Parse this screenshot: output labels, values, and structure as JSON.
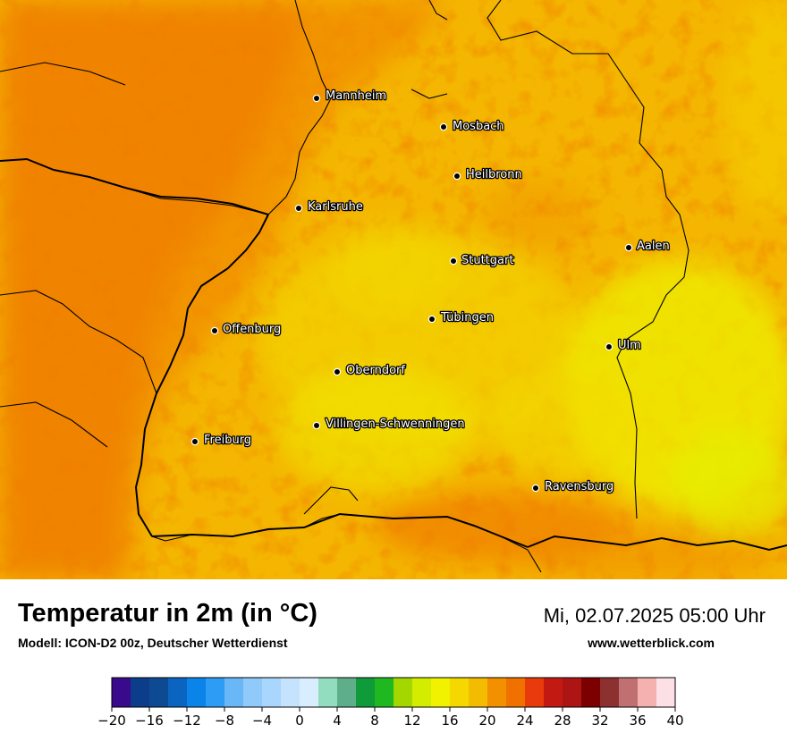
{
  "map": {
    "title": "Temperatur in 2m (in °C)",
    "model": "Modell: ICON-D2 00z, Deutscher Wetterdienst",
    "datetime": "Mi, 02.07.2025 05:00 Uhr",
    "website": "www.wetterblick.com",
    "cities": [
      {
        "id": "mannheim",
        "name": "Mannheim"
      },
      {
        "id": "mosbach",
        "name": "Mosbach"
      },
      {
        "id": "heilbronn",
        "name": "Heilbronn"
      },
      {
        "id": "karlsruhe",
        "name": "Karlsruhe"
      },
      {
        "id": "aalen",
        "name": "Aalen"
      },
      {
        "id": "stuttgart",
        "name": "Stuttgart"
      },
      {
        "id": "tuebingen",
        "name": "Tübingen"
      },
      {
        "id": "offenburg",
        "name": "Offenburg"
      },
      {
        "id": "ulm",
        "name": "Ulm"
      },
      {
        "id": "oberndorf",
        "name": "Oberndorf"
      },
      {
        "id": "villingen",
        "name": "Villingen-Schwenningen"
      },
      {
        "id": "freiburg",
        "name": "Freiburg"
      },
      {
        "id": "ravensburg",
        "name": "Ravensburg"
      }
    ]
  },
  "colorbar": {
    "min": -20,
    "max": 40,
    "step": 2,
    "colors": [
      "#3a0a8c",
      "#0c3d8a",
      "#0d4a92",
      "#0a64c0",
      "#0a84e8",
      "#2d9cf5",
      "#6ab7f8",
      "#8fcafb",
      "#a8d6fc",
      "#c6e3fd",
      "#d8edfe",
      "#92dcc0",
      "#5fae8a",
      "#0f9b3a",
      "#20b820",
      "#a4d600",
      "#d4ec00",
      "#f0f200",
      "#f4d800",
      "#f4bc00",
      "#f29000",
      "#f07000",
      "#e83a0a",
      "#c21a12",
      "#ad1515",
      "#7d0000",
      "#8c3030",
      "#c07070",
      "#f5b0b0",
      "#fde0e6"
    ],
    "ticks": [
      "−20",
      "−16",
      "−12",
      "−8",
      "−4",
      "0",
      "4",
      "8",
      "12",
      "16",
      "20",
      "24",
      "28",
      "32",
      "36",
      "40"
    ]
  }
}
